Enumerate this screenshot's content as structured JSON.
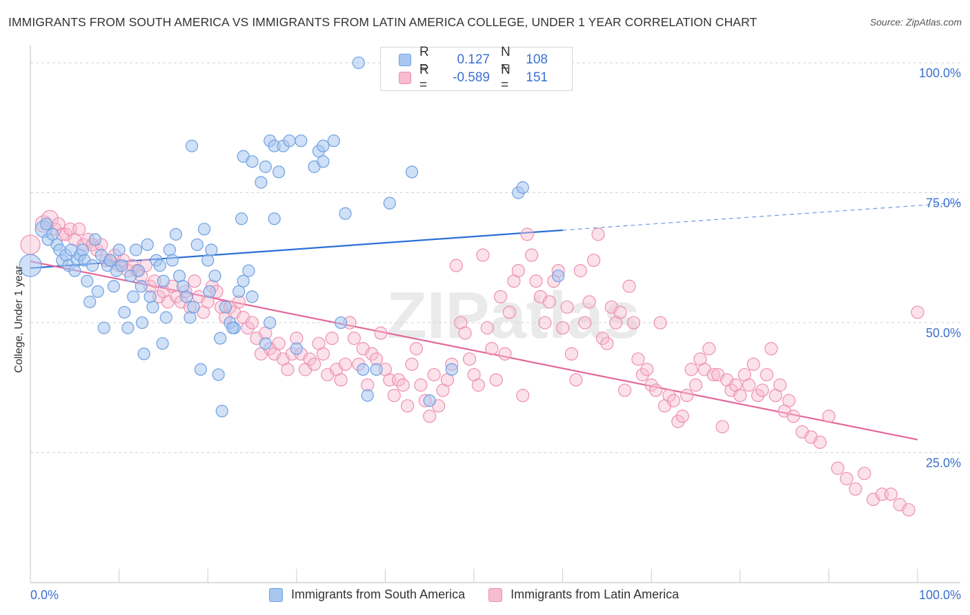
{
  "title": "IMMIGRANTS FROM SOUTH AMERICA VS IMMIGRANTS FROM LATIN AMERICA COLLEGE, UNDER 1 YEAR CORRELATION CHART",
  "source": "Source: ZipAtlas.com",
  "watermark": "ZIPatlas",
  "legend": {
    "rows": [
      {
        "r_label": "R =",
        "r_value": "0.127",
        "n_label": "N =",
        "n_value": "108"
      },
      {
        "r_label": "R =",
        "r_value": "-0.589",
        "n_label": "N =",
        "n_value": "151"
      }
    ]
  },
  "bottom_legend": [
    "Immigrants from South America",
    "Immigrants from Latin America"
  ],
  "colors": {
    "blue_fill": "#a7c7f0",
    "blue_stroke": "#6f9fe0",
    "blue_line": "#2a6fd6",
    "pink_fill": "#f7bcd0",
    "pink_stroke": "#ee8fb0",
    "pink_line": "#e2679a",
    "axis_text": "#3b6fd1",
    "grid": "#d0d0d0"
  },
  "chart_data": {
    "type": "scatter",
    "title": "IMMIGRANTS FROM SOUTH AMERICA VS IMMIGRANTS FROM LATIN AMERICA COLLEGE, UNDER 1 YEAR CORRELATION CHART",
    "xlabel": "",
    "ylabel": "College, Under 1 year",
    "x_tick_labels": [
      "0.0%",
      "100.0%"
    ],
    "y_tick_labels": [
      "100.0%",
      "75.0%",
      "50.0%",
      "25.0%"
    ],
    "y_ticks": [
      100,
      75,
      50,
      25
    ],
    "xlim": [
      0,
      100
    ],
    "ylim": [
      0,
      102
    ],
    "grid": true,
    "series": [
      {
        "name": "Immigrants from South America",
        "R": 0.127,
        "N": 108,
        "trend": {
          "x0": 0,
          "y0": 60.5,
          "x1": 60,
          "y1": 67.8,
          "dash_to_x": 100,
          "dash_to_y": 73.1
        },
        "points": [
          [
            0,
            61
          ],
          [
            1.5,
            68
          ],
          [
            1.8,
            69
          ],
          [
            2,
            66
          ],
          [
            2.5,
            67
          ],
          [
            3,
            65
          ],
          [
            3.3,
            64
          ],
          [
            3.6,
            62
          ],
          [
            4,
            63
          ],
          [
            4.3,
            61
          ],
          [
            4.6,
            64
          ],
          [
            5,
            60
          ],
          [
            5.3,
            62
          ],
          [
            5.6,
            63
          ],
          [
            5.9,
            64
          ],
          [
            6.1,
            62
          ],
          [
            6.4,
            58
          ],
          [
            6.7,
            54
          ],
          [
            7,
            61
          ],
          [
            7.3,
            66
          ],
          [
            7.6,
            56
          ],
          [
            8,
            63
          ],
          [
            8.3,
            49
          ],
          [
            8.7,
            61
          ],
          [
            9,
            62
          ],
          [
            9.4,
            57
          ],
          [
            9.7,
            60
          ],
          [
            10,
            64
          ],
          [
            10.3,
            61
          ],
          [
            10.6,
            52
          ],
          [
            11,
            49
          ],
          [
            11.3,
            59
          ],
          [
            11.6,
            55
          ],
          [
            11.9,
            64
          ],
          [
            12.2,
            60
          ],
          [
            12.5,
            57
          ],
          [
            12.8,
            44
          ],
          [
            13.2,
            65
          ],
          [
            13.5,
            55
          ],
          [
            13.8,
            53
          ],
          [
            14.2,
            62
          ],
          [
            14.6,
            61
          ],
          [
            15,
            58
          ],
          [
            15.3,
            51
          ],
          [
            15.7,
            64
          ],
          [
            16,
            62
          ],
          [
            16.4,
            67
          ],
          [
            16.8,
            59
          ],
          [
            17.2,
            57
          ],
          [
            17.6,
            55
          ],
          [
            18,
            51
          ],
          [
            18.4,
            53
          ],
          [
            18.8,
            65
          ],
          [
            19.2,
            41
          ],
          [
            19.6,
            68
          ],
          [
            20,
            62
          ],
          [
            20.4,
            64
          ],
          [
            20.8,
            59
          ],
          [
            21.2,
            40
          ],
          [
            21.6,
            33
          ],
          [
            22,
            53
          ],
          [
            22.5,
            50
          ],
          [
            23,
            49
          ],
          [
            23.5,
            56
          ],
          [
            24,
            58
          ],
          [
            24.6,
            60
          ],
          [
            25,
            55
          ],
          [
            18.2,
            84
          ],
          [
            24,
            82
          ],
          [
            25,
            81
          ],
          [
            26,
            77
          ],
          [
            26.5,
            80
          ],
          [
            27,
            85
          ],
          [
            27.5,
            84
          ],
          [
            28,
            79
          ],
          [
            28.5,
            84
          ],
          [
            29.2,
            85
          ],
          [
            30.5,
            85
          ],
          [
            32,
            80
          ],
          [
            32.5,
            83
          ],
          [
            33,
            84
          ],
          [
            34.2,
            85
          ],
          [
            33,
            81
          ],
          [
            35.5,
            71
          ],
          [
            37,
            100
          ],
          [
            23.8,
            70
          ],
          [
            27.5,
            70
          ],
          [
            35,
            50
          ],
          [
            37.5,
            41
          ],
          [
            38,
            36
          ],
          [
            39,
            41
          ],
          [
            40.5,
            73
          ],
          [
            43,
            79
          ],
          [
            45,
            35
          ],
          [
            47.5,
            41
          ],
          [
            55,
            75
          ],
          [
            55.5,
            76
          ],
          [
            59.5,
            59
          ],
          [
            27,
            50
          ],
          [
            26.5,
            46
          ],
          [
            30,
            45
          ],
          [
            22.8,
            49
          ],
          [
            21.4,
            47
          ],
          [
            20.2,
            56
          ],
          [
            12.6,
            50
          ],
          [
            14.9,
            46
          ]
        ]
      },
      {
        "name": "Immigrants from Latin America",
        "R": -0.589,
        "N": 151,
        "trend": {
          "x0": 0,
          "y0": 61.8,
          "x1": 100,
          "y1": 27.5
        },
        "points": [
          [
            0,
            65
          ],
          [
            1.5,
            69
          ],
          [
            2.2,
            70
          ],
          [
            2.8,
            68
          ],
          [
            3.2,
            69
          ],
          [
            3.6,
            67
          ],
          [
            4,
            67
          ],
          [
            4.5,
            68
          ],
          [
            5,
            66
          ],
          [
            5.5,
            68
          ],
          [
            6,
            65
          ],
          [
            6.5,
            66
          ],
          [
            7,
            65
          ],
          [
            7.5,
            64
          ],
          [
            8,
            65
          ],
          [
            8.5,
            62
          ],
          [
            9,
            62
          ],
          [
            9.5,
            63
          ],
          [
            10,
            61
          ],
          [
            10.5,
            62
          ],
          [
            11,
            60
          ],
          [
            11.5,
            61
          ],
          [
            12,
            60
          ],
          [
            12.5,
            59
          ],
          [
            13,
            61
          ],
          [
            13.5,
            57
          ],
          [
            14,
            58
          ],
          [
            14.5,
            55
          ],
          [
            15,
            56
          ],
          [
            15.5,
            54
          ],
          [
            16,
            57
          ],
          [
            16.5,
            55
          ],
          [
            17,
            54
          ],
          [
            17.5,
            56
          ],
          [
            18,
            53
          ],
          [
            18.5,
            58
          ],
          [
            19,
            55
          ],
          [
            19.5,
            52
          ],
          [
            20,
            54
          ],
          [
            20.5,
            57
          ],
          [
            21,
            56
          ],
          [
            21.5,
            53
          ],
          [
            22,
            51
          ],
          [
            22.5,
            53
          ],
          [
            23,
            52
          ],
          [
            23.5,
            54
          ],
          [
            24,
            51
          ],
          [
            24.5,
            49
          ],
          [
            25,
            50
          ],
          [
            25.5,
            47
          ],
          [
            26,
            44
          ],
          [
            26.5,
            48
          ],
          [
            27,
            45
          ],
          [
            27.5,
            44
          ],
          [
            28,
            46
          ],
          [
            28.5,
            43
          ],
          [
            29,
            41
          ],
          [
            29.5,
            44
          ],
          [
            30,
            47
          ],
          [
            30.5,
            44
          ],
          [
            31,
            41
          ],
          [
            31.5,
            43
          ],
          [
            32,
            42
          ],
          [
            32.5,
            46
          ],
          [
            33,
            44
          ],
          [
            33.5,
            40
          ],
          [
            34,
            47
          ],
          [
            34.5,
            41
          ],
          [
            35,
            39
          ],
          [
            35.5,
            42
          ],
          [
            36,
            50
          ],
          [
            36.5,
            47
          ],
          [
            37,
            42
          ],
          [
            37.5,
            45
          ],
          [
            38,
            38
          ],
          [
            38.5,
            44
          ],
          [
            39,
            43
          ],
          [
            39.5,
            48
          ],
          [
            40,
            41
          ],
          [
            40.5,
            39
          ],
          [
            41,
            36
          ],
          [
            41.5,
            39
          ],
          [
            42,
            38
          ],
          [
            42.5,
            34
          ],
          [
            43,
            42
          ],
          [
            43.5,
            45
          ],
          [
            44,
            38
          ],
          [
            44.5,
            35
          ],
          [
            45,
            32
          ],
          [
            45.5,
            40
          ],
          [
            46,
            34
          ],
          [
            46.5,
            37
          ],
          [
            47,
            39
          ],
          [
            47.5,
            42
          ],
          [
            48,
            61
          ],
          [
            48.5,
            50
          ],
          [
            49,
            48
          ],
          [
            49.5,
            43
          ],
          [
            50,
            40
          ],
          [
            50.5,
            38
          ],
          [
            51,
            63
          ],
          [
            51.5,
            49
          ],
          [
            52,
            45
          ],
          [
            52.5,
            39
          ],
          [
            53,
            55
          ],
          [
            53.5,
            44
          ],
          [
            54,
            52
          ],
          [
            54.5,
            58
          ],
          [
            55,
            60
          ],
          [
            55.5,
            36
          ],
          [
            56,
            67
          ],
          [
            56.5,
            63
          ],
          [
            57,
            58
          ],
          [
            57.5,
            55
          ],
          [
            58,
            50
          ],
          [
            58.5,
            54
          ],
          [
            59,
            58
          ],
          [
            59.5,
            60
          ],
          [
            60,
            49
          ],
          [
            60.5,
            53
          ],
          [
            61,
            44
          ],
          [
            61.5,
            39
          ],
          [
            62,
            60
          ],
          [
            62.5,
            50
          ],
          [
            63,
            54
          ],
          [
            63.5,
            62
          ],
          [
            64,
            67
          ],
          [
            64.5,
            47
          ],
          [
            65,
            46
          ],
          [
            65.5,
            53
          ],
          [
            66,
            50
          ],
          [
            66.5,
            52
          ],
          [
            67,
            37
          ],
          [
            67.5,
            57
          ],
          [
            68,
            50
          ],
          [
            68.5,
            43
          ],
          [
            69,
            40
          ],
          [
            69.5,
            41
          ],
          [
            70,
            38
          ],
          [
            70.5,
            37
          ],
          [
            71,
            50
          ],
          [
            71.5,
            34
          ],
          [
            72,
            36
          ],
          [
            72.5,
            35
          ],
          [
            73,
            31
          ],
          [
            73.5,
            32
          ],
          [
            74,
            36
          ],
          [
            74.5,
            41
          ],
          [
            75,
            38
          ],
          [
            75.5,
            43
          ],
          [
            76,
            41
          ],
          [
            76.5,
            45
          ],
          [
            77,
            40
          ],
          [
            77.5,
            40
          ],
          [
            78,
            30
          ],
          [
            78.5,
            39
          ],
          [
            79,
            37
          ],
          [
            79.5,
            38
          ],
          [
            80,
            36
          ],
          [
            80.5,
            40
          ],
          [
            81,
            38
          ],
          [
            81.5,
            42
          ],
          [
            82,
            36
          ],
          [
            82.5,
            37
          ],
          [
            83,
            40
          ],
          [
            83.5,
            45
          ],
          [
            84,
            36
          ],
          [
            84.5,
            38
          ],
          [
            85,
            33
          ],
          [
            85.5,
            35
          ],
          [
            86,
            32
          ],
          [
            87,
            29
          ],
          [
            88,
            28
          ],
          [
            89,
            27
          ],
          [
            90,
            32
          ],
          [
            91,
            22
          ],
          [
            92,
            20
          ],
          [
            93,
            18
          ],
          [
            94,
            21
          ],
          [
            95,
            16
          ],
          [
            96,
            17
          ],
          [
            97,
            17
          ],
          [
            98,
            15
          ],
          [
            99,
            14
          ],
          [
            100,
            52
          ]
        ]
      }
    ]
  }
}
